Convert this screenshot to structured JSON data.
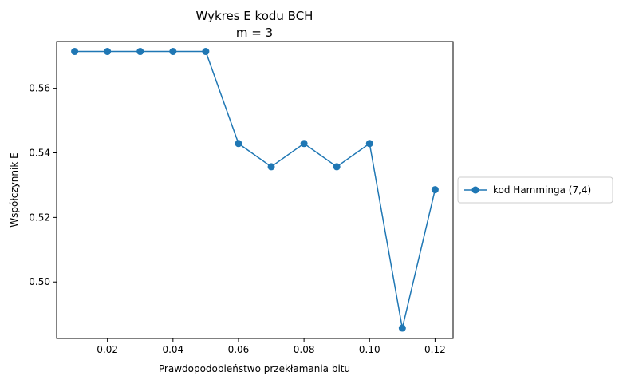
{
  "chart_data": {
    "type": "line",
    "title": "Wykres E kodu BCH",
    "subtitle": "m = 3",
    "xlabel": "Prawdopodobieństwo przekłamania bitu",
    "ylabel": "Współczynnik E",
    "xlim": [
      0.0045,
      0.1255
    ],
    "ylim": [
      0.4825,
      0.5745
    ],
    "x_ticks": [
      0.02,
      0.04,
      0.06,
      0.08,
      0.1,
      0.12
    ],
    "x_tick_labels": [
      "0.02",
      "0.04",
      "0.06",
      "0.08",
      "0.10",
      "0.12"
    ],
    "y_ticks": [
      0.5,
      0.52,
      0.54,
      0.56
    ],
    "y_tick_labels": [
      "0.50",
      "0.52",
      "0.54",
      "0.56"
    ],
    "grid": false,
    "legend_position": "outside-right",
    "x": [
      0.01,
      0.02,
      0.03,
      0.04,
      0.05,
      0.06,
      0.07,
      0.08,
      0.09,
      0.1,
      0.11,
      0.12
    ],
    "series": [
      {
        "name": "kod Hamminga (7,4)",
        "color": "#1f77b4",
        "marker": "circle",
        "values": [
          0.5714,
          0.5714,
          0.5714,
          0.5714,
          0.5714,
          0.5429,
          0.5357,
          0.5429,
          0.5357,
          0.5429,
          0.4857,
          0.5286
        ]
      }
    ]
  }
}
